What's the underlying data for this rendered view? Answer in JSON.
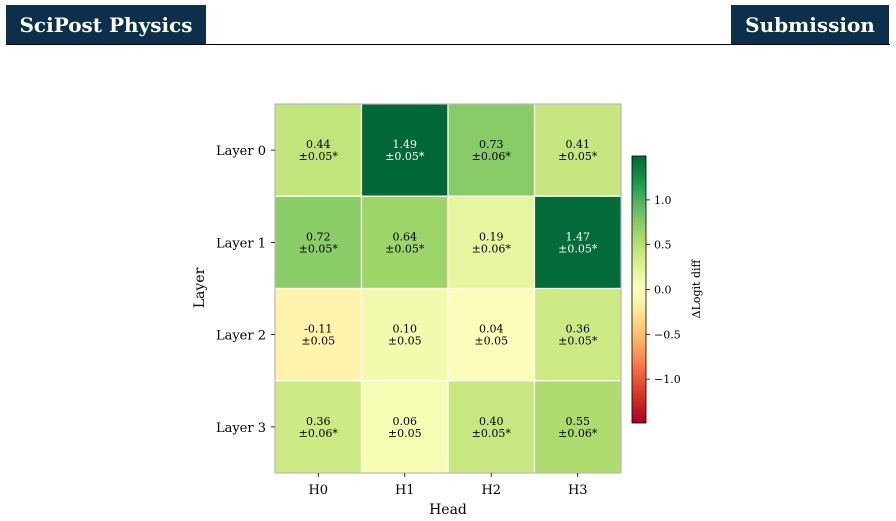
{
  "header": {
    "journal": "SciPost Physics",
    "section": "Submission",
    "colors": {
      "bar": "#0c2f4b"
    }
  },
  "chart_data": {
    "type": "heatmap",
    "xlabel": "Head",
    "ylabel": "Layer",
    "x_categories": [
      "H0",
      "H1",
      "H2",
      "H3"
    ],
    "y_categories": [
      "Layer 0",
      "Layer 1",
      "Layer 2",
      "Layer 3"
    ],
    "values": [
      [
        0.44,
        1.49,
        0.73,
        0.41
      ],
      [
        0.72,
        0.64,
        0.19,
        1.47
      ],
      [
        -0.11,
        0.1,
        0.04,
        0.36
      ],
      [
        0.36,
        0.06,
        0.4,
        0.55
      ]
    ],
    "cell_labels": [
      [
        "0.44\n±0.05*",
        "1.49\n±0.05*",
        "0.73\n±0.06*",
        "0.41\n±0.05*"
      ],
      [
        "0.72\n±0.05*",
        "0.64\n±0.05*",
        "0.19\n±0.06*",
        "1.47\n±0.05*"
      ],
      [
        "-0.11\n±0.05",
        "0.10\n±0.05",
        "0.04\n±0.05",
        "0.36\n±0.05*"
      ],
      [
        "0.36\n±0.06*",
        "0.06\n±0.05",
        "0.40\n±0.05*",
        "0.55\n±0.06*"
      ]
    ],
    "colorbar": {
      "label": "ΔLogit diff",
      "range": [
        -1.49,
        1.49
      ],
      "ticks": [
        1.0,
        0.5,
        0.0,
        -0.5,
        -1.0
      ],
      "tick_labels": [
        "1.0",
        "0.5",
        "0.0",
        "−0.5",
        "−1.0"
      ],
      "colormap": "RdYlGn"
    }
  }
}
